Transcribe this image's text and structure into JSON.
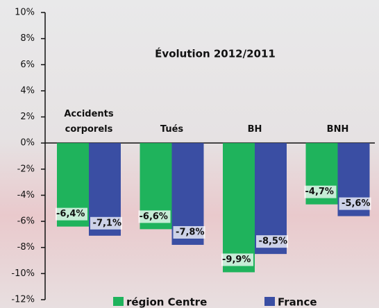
{
  "chart_data": {
    "type": "bar",
    "title": "Évolution 2012/2011",
    "categories": [
      "Accidents corporels",
      "Tués",
      "BH",
      "BNH"
    ],
    "series": [
      {
        "name": "région Centre",
        "color": "#1fb35c",
        "values": [
          -6.4,
          -6.6,
          -9.9,
          -4.7
        ],
        "value_labels": [
          "-6,4%",
          "-6,6%",
          "-9,9%",
          "-4,7%"
        ]
      },
      {
        "name": "France",
        "color": "#3a4ea3",
        "values": [
          -7.1,
          -7.8,
          -8.5,
          -5.6
        ],
        "value_labels": [
          "-7,1%",
          "-7,8%",
          "-8,5%",
          "-5,6%"
        ]
      }
    ],
    "ylim": [
      -12,
      10
    ],
    "yticks": [
      {
        "value": -12,
        "label": "-12%"
      },
      {
        "value": -10,
        "label": "-10%"
      },
      {
        "value": -8,
        "label": "-8%"
      },
      {
        "value": -6,
        "label": "-6%"
      },
      {
        "value": -4,
        "label": "-4%"
      },
      {
        "value": -2,
        "label": "-2%"
      },
      {
        "value": 0,
        "label": "0%"
      },
      {
        "value": 2,
        "label": "2%"
      },
      {
        "value": 4,
        "label": "4%"
      },
      {
        "value": 6,
        "label": "6%"
      },
      {
        "value": 8,
        "label": "8%"
      },
      {
        "value": 10,
        "label": "10%"
      }
    ],
    "legend": "bottom"
  }
}
